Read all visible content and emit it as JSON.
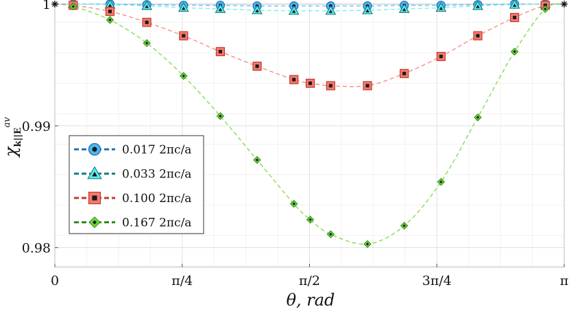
{
  "chart_data": {
    "type": "line",
    "xlabel": "θ, rad",
    "ylabel": "χ",
    "ylabel_sub": "k||E",
    "ylabel_sup": "av",
    "xlim": [
      0,
      3.14159
    ],
    "ylim": [
      0.9784,
      1.0
    ],
    "grid": true,
    "legend_position": "left-center",
    "x_ticks": [
      {
        "value": 0,
        "label": "0"
      },
      {
        "value": 0.7854,
        "label": "π/4"
      },
      {
        "value": 1.5708,
        "label": "π/2"
      },
      {
        "value": 2.3562,
        "label": "3π/4"
      },
      {
        "value": 3.14159,
        "label": "π"
      }
    ],
    "y_ticks": [
      {
        "value": 0.98,
        "label": "0.98"
      },
      {
        "value": 0.99,
        "label": "0.99"
      },
      {
        "value": 1.0,
        "label": "1"
      }
    ],
    "series": [
      {
        "name": "0.017 2πc/a",
        "marker": "circle",
        "color": "#1f6fb5",
        "fill": "#4db8f0",
        "points": [
          {
            "x": 0.1134,
            "y": 1.0
          },
          {
            "x": 0.3402,
            "y": 1.0
          },
          {
            "x": 0.5671,
            "y": 0.99995
          },
          {
            "x": 0.7939,
            "y": 0.9999
          },
          {
            "x": 1.0208,
            "y": 0.9999
          },
          {
            "x": 1.2476,
            "y": 0.99985
          },
          {
            "x": 1.4745,
            "y": 0.99985
          },
          {
            "x": 1.7013,
            "y": 0.99985
          },
          {
            "x": 1.9282,
            "y": 0.99985
          },
          {
            "x": 2.155,
            "y": 0.9999
          },
          {
            "x": 2.3819,
            "y": 0.9999
          },
          {
            "x": 2.6087,
            "y": 0.99995
          },
          {
            "x": 2.8356,
            "y": 1.0
          },
          {
            "x": 3.0246,
            "y": 1.0
          }
        ]
      },
      {
        "name": "0.033 2πc/a",
        "marker": "triangle",
        "color": "#1a7f83",
        "fill": "#5ef0f0",
        "points": [
          {
            "x": 0.1134,
            "y": 1.0
          },
          {
            "x": 0.3402,
            "y": 0.99995
          },
          {
            "x": 0.5671,
            "y": 0.99985
          },
          {
            "x": 0.7939,
            "y": 0.9997
          },
          {
            "x": 1.0208,
            "y": 0.9996
          },
          {
            "x": 1.2476,
            "y": 0.9995
          },
          {
            "x": 1.4745,
            "y": 0.99945
          },
          {
            "x": 1.7013,
            "y": 0.99945
          },
          {
            "x": 1.9282,
            "y": 0.9995
          },
          {
            "x": 2.155,
            "y": 0.9996
          },
          {
            "x": 2.3819,
            "y": 0.9997
          },
          {
            "x": 2.6087,
            "y": 0.99985
          },
          {
            "x": 2.8356,
            "y": 0.99995
          },
          {
            "x": 3.0246,
            "y": 1.0
          }
        ]
      },
      {
        "name": "0.100 2πc/a",
        "marker": "square",
        "color": "#c0392b",
        "fill": "#f47a6e",
        "points": [
          {
            "x": 0.1134,
            "y": 0.9999
          },
          {
            "x": 0.3402,
            "y": 0.9994
          },
          {
            "x": 0.5671,
            "y": 0.9985
          },
          {
            "x": 0.7939,
            "y": 0.9974
          },
          {
            "x": 1.0208,
            "y": 0.9961
          },
          {
            "x": 1.2476,
            "y": 0.9949
          },
          {
            "x": 1.4745,
            "y": 0.9938
          },
          {
            "x": 1.5753,
            "y": 0.9935
          },
          {
            "x": 1.7013,
            "y": 0.9933
          },
          {
            "x": 1.9282,
            "y": 0.9933
          },
          {
            "x": 2.155,
            "y": 0.9943
          },
          {
            "x": 2.3819,
            "y": 0.9957
          },
          {
            "x": 2.6087,
            "y": 0.9974
          },
          {
            "x": 2.8356,
            "y": 0.9989
          },
          {
            "x": 3.0246,
            "y": 0.9999
          }
        ]
      },
      {
        "name": "0.167 2πc/a",
        "marker": "diamond",
        "color": "#2e8b1e",
        "fill": "#6fd63a",
        "points": [
          {
            "x": 0.1134,
            "y": 0.9998
          },
          {
            "x": 0.3402,
            "y": 0.9987
          },
          {
            "x": 0.5671,
            "y": 0.9968
          },
          {
            "x": 0.7939,
            "y": 0.9941
          },
          {
            "x": 1.0208,
            "y": 0.9908
          },
          {
            "x": 1.2476,
            "y": 0.9872
          },
          {
            "x": 1.4745,
            "y": 0.9836
          },
          {
            "x": 1.5753,
            "y": 0.9823
          },
          {
            "x": 1.7013,
            "y": 0.9811
          },
          {
            "x": 1.9282,
            "y": 0.9803
          },
          {
            "x": 2.155,
            "y": 0.9818
          },
          {
            "x": 2.3819,
            "y": 0.9854
          },
          {
            "x": 2.6087,
            "y": 0.9907
          },
          {
            "x": 2.8356,
            "y": 0.9961
          },
          {
            "x": 3.0246,
            "y": 0.9996
          }
        ]
      }
    ],
    "endpoint_markers": [
      {
        "x": 0,
        "y": 1.0
      },
      {
        "x": 3.14159,
        "y": 1.0
      }
    ]
  }
}
